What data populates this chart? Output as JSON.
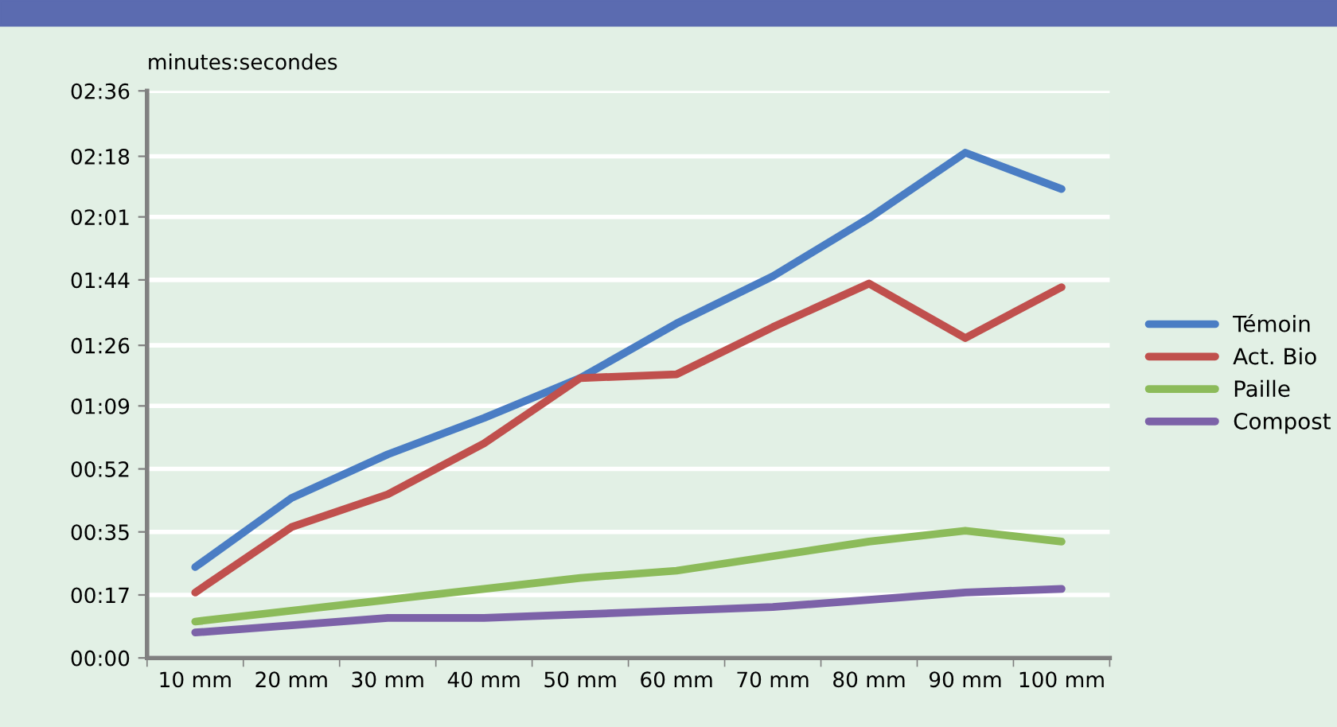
{
  "chart_data": {
    "type": "line",
    "ylabel": "minutes:secondes",
    "categories": [
      "10 mm",
      "20 mm",
      "30 mm",
      "40 mm",
      "50 mm",
      "60 mm",
      "70 mm",
      "80 mm",
      "90 mm",
      "100 mm"
    ],
    "series": [
      {
        "name": "Témoin",
        "color": "#4a7dc4",
        "values": [
          25,
          44,
          56,
          66,
          77,
          92,
          105,
          121,
          139,
          129
        ]
      },
      {
        "name": "Act. Bio",
        "color": "#c0504d",
        "values": [
          18,
          36,
          45,
          59,
          77,
          78,
          91,
          103,
          88,
          102
        ]
      },
      {
        "name": "Paille",
        "color": "#8cbb5a",
        "values": [
          10,
          13,
          16,
          19,
          22,
          24,
          28,
          32,
          35,
          32
        ]
      },
      {
        "name": "Compost",
        "color": "#7c62a8",
        "values": [
          7,
          9,
          11,
          11,
          12,
          13,
          14,
          16,
          18,
          19
        ]
      }
    ],
    "ylim": [
      0,
      156
    ],
    "yticks": [
      {
        "value": 0,
        "label": "00:00"
      },
      {
        "value": 17.33,
        "label": "00:17"
      },
      {
        "value": 34.67,
        "label": "00:35"
      },
      {
        "value": 52,
        "label": "00:52"
      },
      {
        "value": 69.33,
        "label": "01:09"
      },
      {
        "value": 86,
        "label": "01:26"
      },
      {
        "value": 104,
        "label": "01:44"
      },
      {
        "value": 121.33,
        "label": "02:01"
      },
      {
        "value": 138,
        "label": "02:18"
      },
      {
        "value": 156,
        "label": "02:36"
      }
    ],
    "grid": "y",
    "legend": "right",
    "marker": "none",
    "line_style": "solid"
  }
}
